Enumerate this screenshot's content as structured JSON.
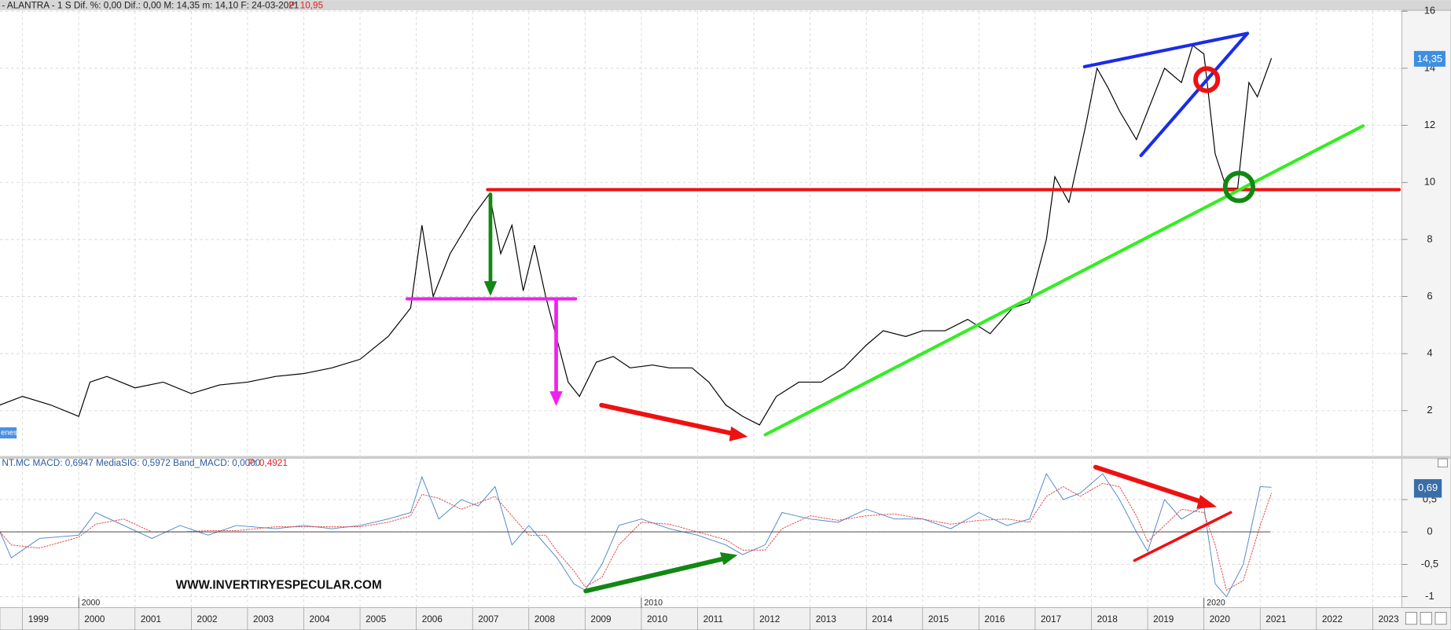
{
  "watermark": "WWW.INVERTIRYESPECULAR.COM",
  "side_tag": "enes",
  "chart_data": [
    {
      "type": "line",
      "title": "- ALANTRA -  1 S  Dif. %: 0,00  Dif.: 0,00  M: 14,35  m: 14,10  F: 24-03-2021",
      "title_p": "P: 10,95",
      "xlim": [
        1998.6,
        2023.52
      ],
      "ylim": [
        0.41,
        16
      ],
      "yticks": [
        2,
        4,
        6,
        8,
        10,
        12,
        14,
        16
      ],
      "grid": true,
      "last_tag": "14,35",
      "series": [
        {
          "name": "ALANTRA",
          "color": "#000000",
          "x": [
            1998.6,
            1999,
            1999.5,
            2000,
            2000.2,
            2000.5,
            2001,
            2001.5,
            2002,
            2002.5,
            2003,
            2003.5,
            2004,
            2004.5,
            2005,
            2005.5,
            2005.9,
            2006.1,
            2006.3,
            2006.6,
            2007,
            2007.3,
            2007.5,
            2007.7,
            2007.9,
            2008.1,
            2008.3,
            2008.5,
            2008.7,
            2008.9,
            2009.2,
            2009.5,
            2009.8,
            2010.2,
            2010.5,
            2010.9,
            2011.2,
            2011.5,
            2011.8,
            2012.1,
            2012.4,
            2012.8,
            2013.2,
            2013.6,
            2014,
            2014.3,
            2014.7,
            2015,
            2015.4,
            2015.8,
            2016.2,
            2016.6,
            2016.9,
            2017,
            2017.2,
            2017.35,
            2017.6,
            2017.9,
            2018.1,
            2018.3,
            2018.5,
            2018.8,
            2019,
            2019.3,
            2019.6,
            2019.8,
            2020,
            2020.2,
            2020.4,
            2020.6,
            2020.8,
            2020.95,
            2021.2
          ],
          "values": [
            2.2,
            2.5,
            2.2,
            1.8,
            3.0,
            3.2,
            2.8,
            3.0,
            2.6,
            2.9,
            3.0,
            3.2,
            3.3,
            3.5,
            3.8,
            4.6,
            5.6,
            8.5,
            6.0,
            7.5,
            8.8,
            9.6,
            7.5,
            8.5,
            6.2,
            7.8,
            6.0,
            4.5,
            3.0,
            2.5,
            3.7,
            3.9,
            3.5,
            3.6,
            3.5,
            3.5,
            3.0,
            2.2,
            1.8,
            1.5,
            2.5,
            3.0,
            3.0,
            3.5,
            4.3,
            4.8,
            4.6,
            4.8,
            4.8,
            5.2,
            4.7,
            5.6,
            5.8,
            6.5,
            8.0,
            10.2,
            9.3,
            12.0,
            14.0,
            13.3,
            12.5,
            11.5,
            12.5,
            14.0,
            13.5,
            14.8,
            14.5,
            11.0,
            9.8,
            9.8,
            13.5,
            13.0,
            14.35
          ]
        }
      ]
    },
    {
      "type": "line",
      "title": "NT.MC  MACD: 0,6947  MediaSIG: 0,5972  Band_MACD: 0,0000",
      "title_p": "P: 0,4921",
      "xlim": [
        1998.6,
        2023.52
      ],
      "ylim": [
        -1.17,
        1.13
      ],
      "yticks": [
        {
          "value": 0.5,
          "label": "0,5"
        },
        0,
        {
          "value": -0.5,
          "label": "-0,5"
        },
        -1
      ],
      "xticks": [
        1999,
        2000,
        2001,
        2002,
        2003,
        2004,
        2005,
        2006,
        2007,
        2008,
        2009,
        2010,
        2011,
        2012,
        2013,
        2014,
        2015,
        2016,
        2017,
        2018,
        2019,
        2020,
        2021,
        2022,
        2023
      ],
      "decade_ticks": [
        2000,
        2010,
        2020
      ],
      "grid": true,
      "last_tag": "0,69",
      "series": [
        {
          "name": "MACD",
          "color": "#4a86c8",
          "x": [
            1998.6,
            1998.8,
            1999.3,
            2000,
            2000.3,
            2000.8,
            2001.3,
            2001.8,
            2002.3,
            2002.8,
            2003.5,
            2004,
            2004.5,
            2005,
            2005.5,
            2005.9,
            2006.1,
            2006.4,
            2006.8,
            2007.1,
            2007.4,
            2007.7,
            2008,
            2008.3,
            2008.5,
            2008.8,
            2009,
            2009.3,
            2009.6,
            2010,
            2010.5,
            2011,
            2011.5,
            2011.8,
            2012.2,
            2012.5,
            2013,
            2013.5,
            2014,
            2014.5,
            2015,
            2015.5,
            2016,
            2016.5,
            2016.9,
            2017.2,
            2017.5,
            2017.8,
            2018.2,
            2018.5,
            2018.8,
            2019,
            2019.3,
            2019.6,
            2020,
            2020.2,
            2020.4,
            2020.7,
            2021,
            2021.2
          ],
          "values": [
            0,
            -0.4,
            -0.1,
            -0.05,
            0.3,
            0.1,
            -0.1,
            0.1,
            -0.05,
            0.1,
            0.05,
            0.1,
            0.05,
            0.1,
            0.2,
            0.3,
            0.85,
            0.2,
            0.5,
            0.4,
            0.7,
            -0.2,
            0.1,
            -0.2,
            -0.4,
            -0.8,
            -0.9,
            -0.5,
            0.1,
            0.2,
            0.05,
            -0.05,
            -0.2,
            -0.35,
            -0.2,
            0.3,
            0.2,
            0.15,
            0.35,
            0.2,
            0.2,
            0.05,
            0.3,
            0.1,
            0.2,
            0.9,
            0.5,
            0.6,
            0.9,
            0.5,
            0,
            -0.3,
            0.5,
            0.2,
            0.4,
            -0.8,
            -1.0,
            -0.5,
            0.7,
            0.69
          ]
        },
        {
          "name": "MediaSIG",
          "color": "#e04040",
          "x": [
            1998.6,
            1998.8,
            1999.3,
            2000,
            2000.3,
            2000.8,
            2001.3,
            2001.8,
            2002.3,
            2002.8,
            2003.5,
            2004,
            2004.5,
            2005,
            2005.5,
            2005.9,
            2006.1,
            2006.4,
            2006.8,
            2007.1,
            2007.4,
            2007.7,
            2008,
            2008.3,
            2008.5,
            2008.8,
            2009,
            2009.3,
            2009.6,
            2010,
            2010.5,
            2011,
            2011.5,
            2011.8,
            2012.2,
            2012.5,
            2013,
            2013.5,
            2014,
            2014.5,
            2015,
            2015.5,
            2016,
            2016.5,
            2016.9,
            2017.2,
            2017.5,
            2017.8,
            2018.2,
            2018.5,
            2018.8,
            2019,
            2019.3,
            2019.6,
            2020,
            2020.2,
            2020.4,
            2020.7,
            2021,
            2021.2
          ],
          "values": [
            0,
            -0.2,
            -0.25,
            -0.08,
            0.12,
            0.2,
            0,
            0,
            0.02,
            0.02,
            0.08,
            0.08,
            0.08,
            0.08,
            0.15,
            0.25,
            0.58,
            0.52,
            0.35,
            0.45,
            0.55,
            0.25,
            -0.05,
            -0.05,
            -0.3,
            -0.6,
            -0.85,
            -0.7,
            -0.2,
            0.15,
            0.12,
            0,
            -0.12,
            -0.28,
            -0.28,
            0.05,
            0.25,
            0.18,
            0.25,
            0.28,
            0.2,
            0.12,
            0.18,
            0.2,
            0.15,
            0.55,
            0.7,
            0.55,
            0.75,
            0.7,
            0.25,
            -0.15,
            0.1,
            0.35,
            0.3,
            -0.2,
            -0.9,
            -0.75,
            0.1,
            0.6
          ]
        }
      ]
    }
  ]
}
